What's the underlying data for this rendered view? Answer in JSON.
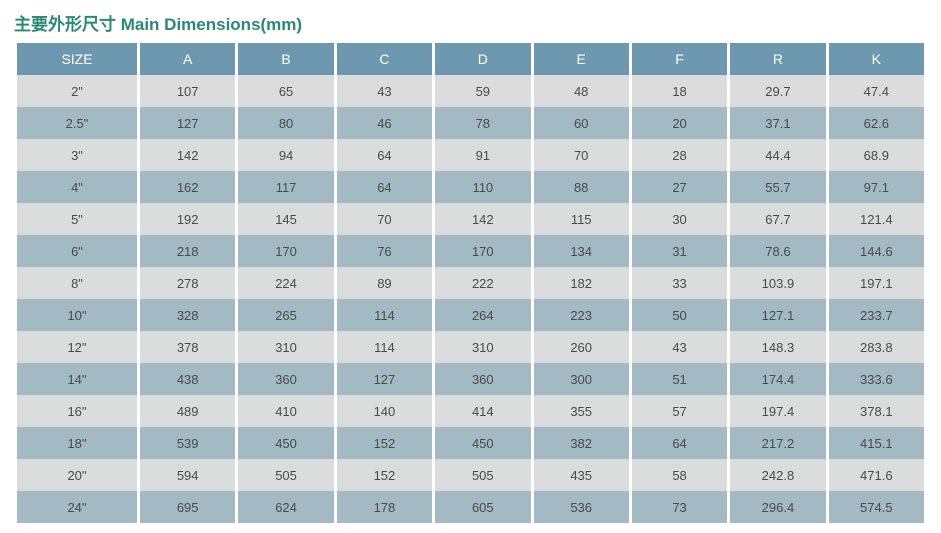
{
  "title": "主要外形尺寸 Main Dimensions(mm)",
  "title_color": "#2a8975",
  "title_fontsize": 17,
  "table": {
    "header_bg": "#6d98b0",
    "header_text_color": "#ffffff",
    "row_odd_bg": "#dbdcdc",
    "row_even_bg": "#a3b9c4",
    "cell_text_color": "#4a4a4a",
    "cell_fontsize": 13,
    "header_fontsize": 14,
    "columns": [
      "SIZE",
      "A",
      "B",
      "C",
      "D",
      "E",
      "F",
      "R",
      "K"
    ],
    "rows": [
      [
        "2\"",
        "107",
        "65",
        "43",
        "59",
        "48",
        "18",
        "29.7",
        "47.4"
      ],
      [
        "2.5\"",
        "127",
        "80",
        "46",
        "78",
        "60",
        "20",
        "37.1",
        "62.6"
      ],
      [
        "3\"",
        "142",
        "94",
        "64",
        "91",
        "70",
        "28",
        "44.4",
        "68.9"
      ],
      [
        "4\"",
        "162",
        "117",
        "64",
        "110",
        "88",
        "27",
        "55.7",
        "97.1"
      ],
      [
        "5\"",
        "192",
        "145",
        "70",
        "142",
        "115",
        "30",
        "67.7",
        "121.4"
      ],
      [
        "6\"",
        "218",
        "170",
        "76",
        "170",
        "134",
        "31",
        "78.6",
        "144.6"
      ],
      [
        "8\"",
        "278",
        "224",
        "89",
        "222",
        "182",
        "33",
        "103.9",
        "197.1"
      ],
      [
        "10\"",
        "328",
        "265",
        "114",
        "264",
        "223",
        "50",
        "127.1",
        "233.7"
      ],
      [
        "12\"",
        "378",
        "310",
        "114",
        "310",
        "260",
        "43",
        "148.3",
        "283.8"
      ],
      [
        "14\"",
        "438",
        "360",
        "127",
        "360",
        "300",
        "51",
        "174.4",
        "333.6"
      ],
      [
        "16\"",
        "489",
        "410",
        "140",
        "414",
        "355",
        "57",
        "197.4",
        "378.1"
      ],
      [
        "18\"",
        "539",
        "450",
        "152",
        "450",
        "382",
        "64",
        "217.2",
        "415.1"
      ],
      [
        "20\"",
        "594",
        "505",
        "152",
        "505",
        "435",
        "58",
        "242.8",
        "471.6"
      ],
      [
        "24\"",
        "695",
        "624",
        "178",
        "605",
        "536",
        "73",
        "296.4",
        "574.5"
      ]
    ]
  }
}
